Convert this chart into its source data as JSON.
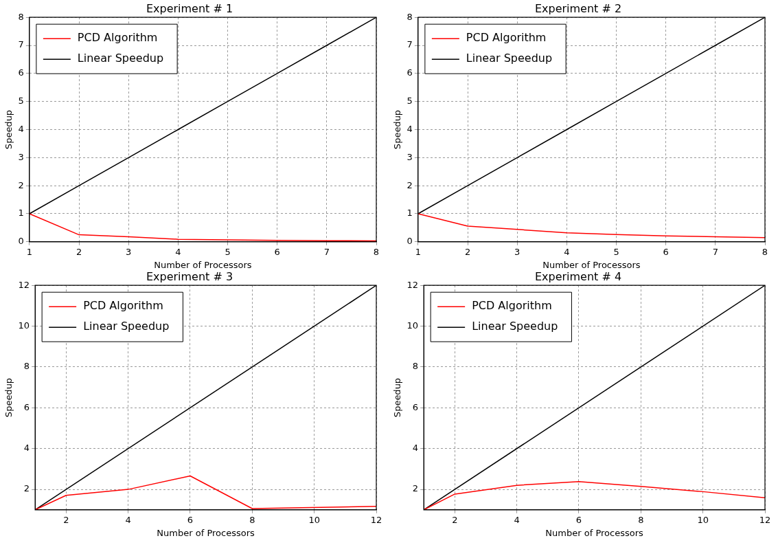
{
  "chart_data": [
    {
      "type": "line",
      "title": "Experiment # 1",
      "xlabel": "Number of Processors",
      "ylabel": "Speedup",
      "xlim": [
        1,
        8
      ],
      "xticks": [
        1,
        2,
        3,
        4,
        5,
        6,
        7,
        8
      ],
      "ylim": [
        0,
        8
      ],
      "yticks": [
        0,
        1,
        2,
        3,
        4,
        5,
        6,
        7,
        8
      ],
      "grid": true,
      "legend": "top left",
      "series": [
        {
          "name": "PCD Algorithm",
          "color": "#ff0000",
          "x": [
            1,
            2,
            3,
            4,
            5,
            6,
            7,
            8
          ],
          "values": [
            1,
            0.25,
            0.18,
            0.09,
            0.07,
            0.05,
            0.04,
            0.03
          ]
        },
        {
          "name": "Linear Speedup",
          "color": "#000000",
          "x": [
            1,
            2,
            3,
            4,
            5,
            6,
            7,
            8
          ],
          "values": [
            1,
            2,
            3,
            4,
            5,
            6,
            7,
            8
          ]
        }
      ]
    },
    {
      "type": "line",
      "title": "Experiment # 2",
      "xlabel": "Number of Processors",
      "ylabel": "Speedup",
      "xlim": [
        1,
        8
      ],
      "xticks": [
        1,
        2,
        3,
        4,
        5,
        6,
        7,
        8
      ],
      "ylim": [
        0,
        8
      ],
      "yticks": [
        0,
        1,
        2,
        3,
        4,
        5,
        6,
        7,
        8
      ],
      "grid": true,
      "legend": "top left",
      "series": [
        {
          "name": "PCD Algorithm",
          "color": "#ff0000",
          "x": [
            1,
            2,
            3,
            4,
            5,
            6,
            7,
            8
          ],
          "values": [
            1,
            0.56,
            0.44,
            0.32,
            0.26,
            0.21,
            0.18,
            0.15
          ]
        },
        {
          "name": "Linear Speedup",
          "color": "#000000",
          "x": [
            1,
            2,
            3,
            4,
            5,
            6,
            7,
            8
          ],
          "values": [
            1,
            2,
            3,
            4,
            5,
            6,
            7,
            8
          ]
        }
      ]
    },
    {
      "type": "line",
      "title": "Experiment # 3",
      "xlabel": "Number of Processors",
      "ylabel": "Speedup",
      "xlim": [
        1,
        12
      ],
      "xticks": [
        2,
        4,
        6,
        8,
        10,
        12
      ],
      "ylim": [
        1,
        12
      ],
      "yticks": [
        2,
        4,
        6,
        8,
        10,
        12
      ],
      "grid": true,
      "legend": "top left",
      "series": [
        {
          "name": "PCD Algorithm",
          "color": "#ff0000",
          "x": [
            1,
            2,
            4,
            6,
            8,
            12
          ],
          "values": [
            1,
            1.71,
            2.0,
            2.66,
            1.06,
            1.17
          ]
        },
        {
          "name": "Linear Speedup",
          "color": "#000000",
          "x": [
            1,
            12
          ],
          "values": [
            1,
            12
          ]
        }
      ]
    },
    {
      "type": "line",
      "title": "Experiment # 4",
      "xlabel": "Number of Processors",
      "ylabel": "Speedup",
      "xlim": [
        1,
        12
      ],
      "xticks": [
        2,
        4,
        6,
        8,
        10,
        12
      ],
      "ylim": [
        1,
        12
      ],
      "yticks": [
        2,
        4,
        6,
        8,
        10,
        12
      ],
      "grid": true,
      "legend": "top left",
      "series": [
        {
          "name": "PCD Algorithm",
          "color": "#ff0000",
          "x": [
            1,
            2,
            4,
            6,
            8,
            10,
            12
          ],
          "values": [
            1,
            1.77,
            2.2,
            2.38,
            2.15,
            1.89,
            1.59
          ]
        },
        {
          "name": "Linear Speedup",
          "color": "#000000",
          "x": [
            1,
            12
          ],
          "values": [
            1,
            12
          ]
        }
      ]
    }
  ]
}
